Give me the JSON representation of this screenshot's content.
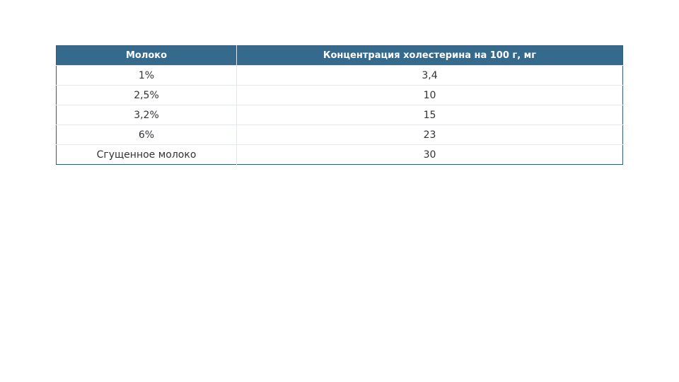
{
  "table": {
    "headers": [
      "Молоко",
      "Концентрация холестерина на 100 г, мг"
    ],
    "rows": [
      [
        "1%",
        "3,4"
      ],
      [
        "2,5%",
        "10"
      ],
      [
        "3,2%",
        "15"
      ],
      [
        "6%",
        "23"
      ],
      [
        "Сгущенное молоко",
        "30"
      ]
    ]
  },
  "colors": {
    "header_bg": "#356a8c",
    "header_text": "#ffffff",
    "border": "#2e5c80"
  }
}
